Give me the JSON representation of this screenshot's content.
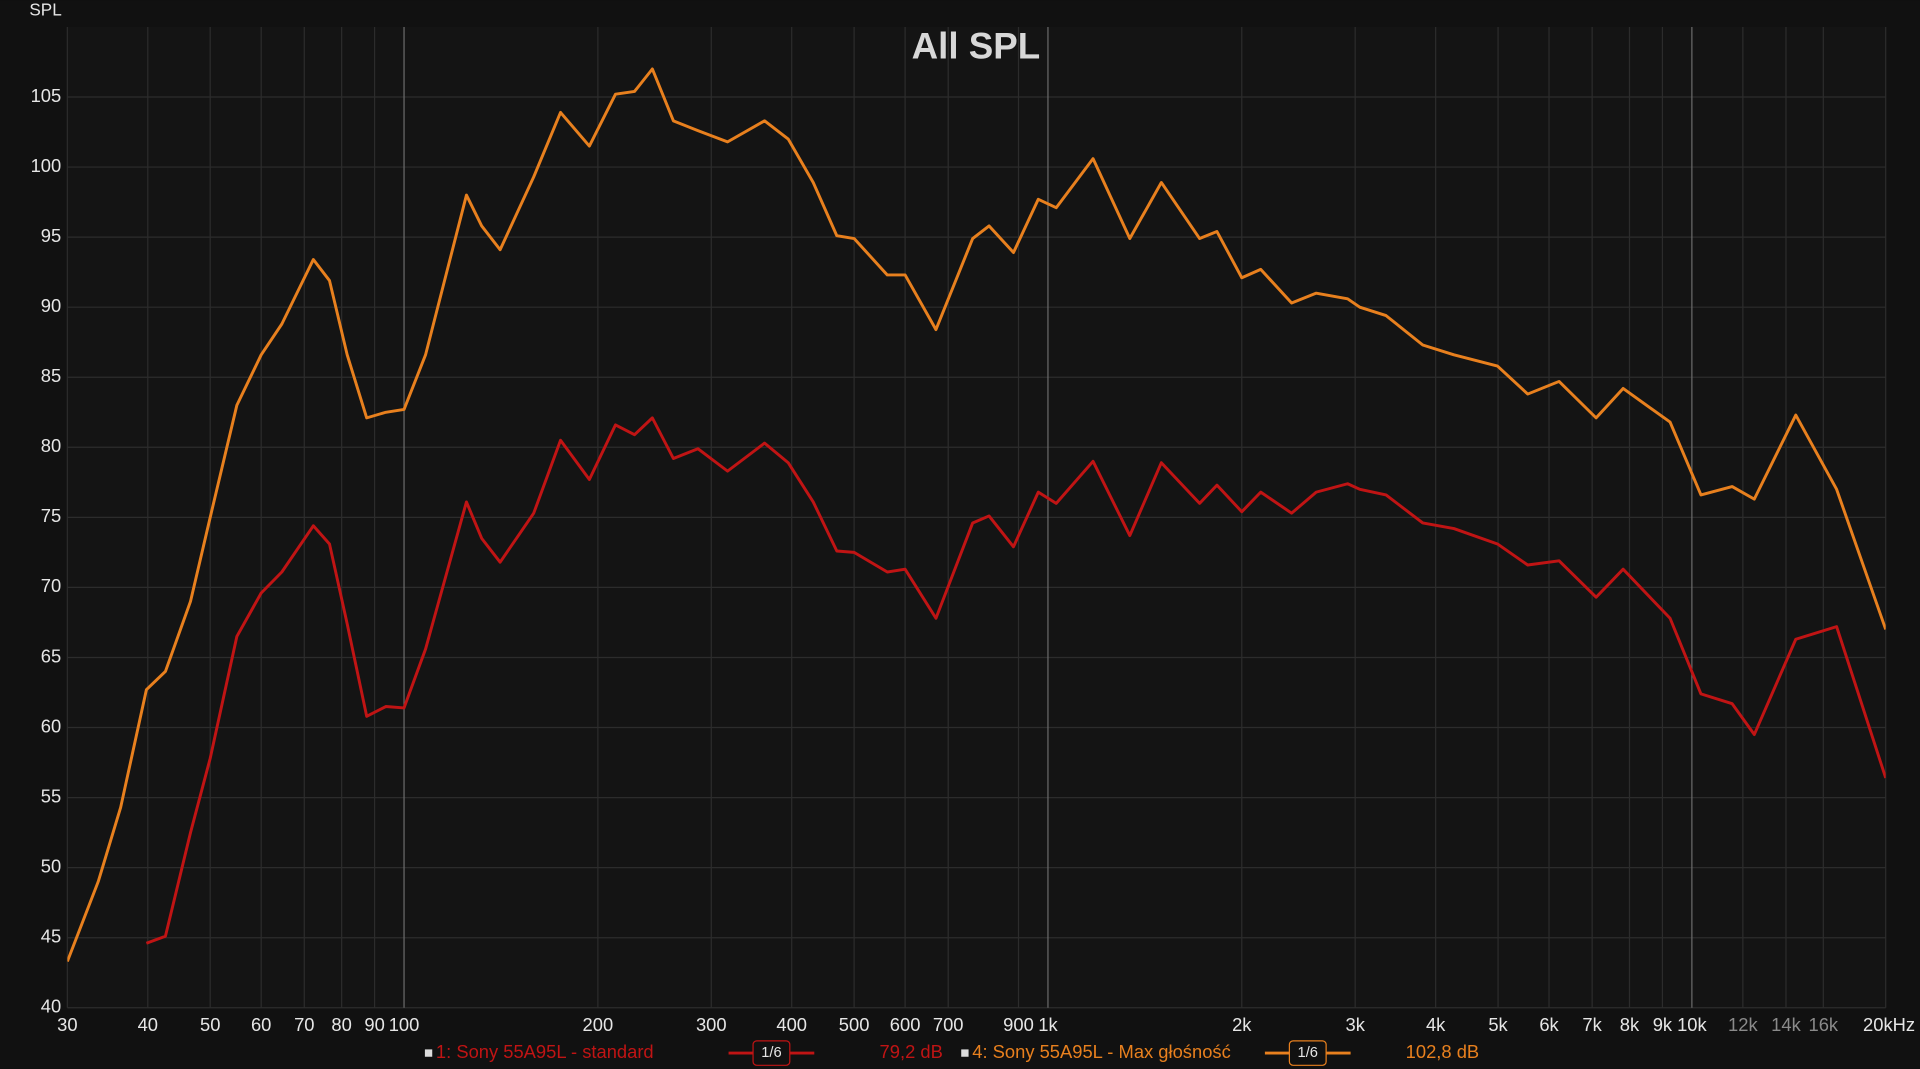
{
  "chart_data": {
    "type": "line",
    "title": "All SPL",
    "y_label": "SPL",
    "log_x": true,
    "grid": true,
    "xlim": [
      30,
      20000
    ],
    "ylim": [
      40,
      110
    ],
    "xticks": [
      30,
      40,
      50,
      60,
      70,
      80,
      90,
      100,
      200,
      300,
      400,
      500,
      600,
      700,
      900,
      {
        "value": 1000,
        "label": "1k"
      },
      {
        "value": 2000,
        "label": "2k"
      },
      {
        "value": 3000,
        "label": "3k"
      },
      {
        "value": 4000,
        "label": "4k"
      },
      {
        "value": 5000,
        "label": "5k"
      },
      {
        "value": 6000,
        "label": "6k"
      },
      {
        "value": 7000,
        "label": "7k"
      },
      {
        "value": 8000,
        "label": "8k"
      },
      {
        "value": 9000,
        "label": "9k"
      },
      {
        "value": 10000,
        "label": "10k"
      },
      {
        "value": 12000,
        "label": "12k"
      },
      {
        "value": 14000,
        "label": "14k"
      },
      {
        "value": 16000,
        "label": "16k"
      },
      {
        "value": 20000,
        "label": "20kHz"
      }
    ],
    "yticks": [
      40,
      45,
      50,
      55,
      60,
      65,
      70,
      75,
      80,
      85,
      90,
      95,
      100,
      105
    ],
    "x": [
      30,
      33.5,
      36.3,
      39.8,
      42.6,
      46.6,
      50,
      55,
      60,
      64.6,
      72.3,
      76.6,
      81.6,
      87.5,
      93.7,
      100,
      108,
      125,
      132,
      141,
      159,
      175,
      194,
      213,
      228,
      243,
      262,
      286,
      318,
      363,
      395,
      432,
      470,
      500,
      563,
      600,
      670,
      764,
      810,
      884,
      966,
      1030,
      1175,
      1340,
      1500,
      1720,
      1830,
      2000,
      2140,
      2390,
      2610,
      2920,
      3050,
      3350,
      3820,
      4270,
      4990,
      5560,
      6220,
      7100,
      7820,
      9250,
      10330,
      11550,
      12500,
      14500,
      16780,
      20000
    ],
    "series": [
      {
        "name": "1: Sony 55A95L - standard",
        "color": "#c01414",
        "smoothing": "1/6",
        "level": "79,2 dB",
        "values": [
          null,
          null,
          null,
          44.6,
          45.1,
          52.5,
          57.8,
          66.5,
          69.6,
          71.1,
          74.4,
          73.1,
          67.4,
          60.8,
          61.5,
          61.4,
          65.6,
          76.1,
          73.5,
          71.8,
          75.3,
          80.5,
          77.7,
          81.6,
          80.9,
          82.1,
          79.2,
          79.9,
          78.3,
          80.3,
          78.9,
          76.1,
          72.6,
          72.5,
          71.1,
          71.3,
          67.8,
          74.6,
          75.1,
          72.9,
          76.8,
          76,
          79,
          73.7,
          78.9,
          76,
          77.3,
          75.4,
          76.8,
          75.3,
          76.8,
          77.4,
          77,
          76.6,
          74.6,
          74.2,
          73.1,
          71.6,
          71.9,
          69.3,
          71.3,
          67.8,
          62.4,
          61.7,
          59.5,
          66.3,
          67.2,
          56.4
        ]
      },
      {
        "name": "4: Sony 55A95L - Max głośność",
        "color": "#e8801e",
        "smoothing": "1/6",
        "level": "102,8 dB",
        "values": [
          43.3,
          49,
          54.3,
          62.7,
          64,
          69,
          75,
          83,
          86.6,
          88.8,
          93.4,
          91.9,
          86.6,
          82.1,
          82.5,
          82.7,
          86.6,
          98,
          95.8,
          94.1,
          99.3,
          103.9,
          101.5,
          105.2,
          105.4,
          107,
          103.3,
          102.6,
          101.8,
          103.3,
          102,
          98.9,
          95.1,
          94.9,
          92.3,
          92.3,
          88.4,
          94.9,
          95.8,
          93.9,
          97.7,
          97.1,
          100.6,
          94.9,
          98.9,
          94.9,
          95.4,
          92.1,
          92.7,
          90.3,
          91,
          90.6,
          90,
          89.4,
          87.3,
          86.6,
          85.8,
          83.8,
          84.7,
          82.1,
          84.2,
          81.8,
          76.6,
          77.2,
          76.3,
          82.3,
          77,
          67
        ]
      }
    ]
  }
}
